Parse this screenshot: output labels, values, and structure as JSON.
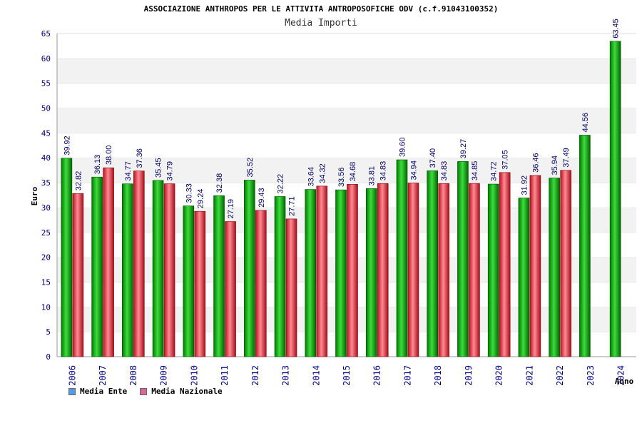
{
  "chart_data": {
    "type": "bar",
    "title": "ASSOCIAZIONE ANTHROPOS PER LE ATTIVITA ANTROPOSOFICHE ODV (c.f.91043100352)",
    "subtitle": "Media Importi",
    "xlabel": "Anno",
    "ylabel": "Euro",
    "ylim": [
      0,
      65
    ],
    "yticks": [
      0,
      5,
      10,
      15,
      20,
      25,
      30,
      35,
      40,
      45,
      50,
      55,
      60,
      65
    ],
    "grid": "horizontal bands",
    "legend_position": "bottom-left",
    "categories": [
      "2006",
      "2007",
      "2008",
      "2009",
      "2010",
      "2011",
      "2012",
      "2013",
      "2014",
      "2015",
      "2016",
      "2017",
      "2018",
      "2019",
      "2020",
      "2021",
      "2022",
      "2023",
      "2024"
    ],
    "series": [
      {
        "name": "Media Ente",
        "color": "#00aa00",
        "legend_color": "#5599ee",
        "values": [
          39.92,
          36.13,
          34.77,
          35.45,
          30.33,
          32.38,
          35.52,
          32.22,
          33.64,
          33.56,
          33.81,
          39.6,
          37.4,
          39.27,
          34.72,
          31.92,
          35.94,
          44.56,
          63.45
        ],
        "labels": [
          "39.92",
          "36.13",
          "34.77",
          "35.45",
          "30.33",
          "32.38",
          "35.52",
          "32.22",
          "33.64",
          "33.56",
          "33.81",
          "39.60",
          "37.40",
          "39.27",
          "34.72",
          "31.92",
          "35.94",
          "44.56",
          "63.45"
        ]
      },
      {
        "name": "Media Nazionale",
        "color": "#dd2233",
        "legend_color": "#dd6699",
        "values": [
          32.82,
          38.0,
          37.36,
          34.79,
          29.24,
          27.19,
          29.43,
          27.71,
          34.32,
          34.68,
          34.83,
          34.94,
          34.83,
          34.85,
          37.05,
          36.46,
          37.49,
          null,
          null
        ],
        "labels": [
          "32.82",
          "38.00",
          "37.36",
          "34.79",
          "29.24",
          "27.19",
          "29.43",
          "27.71",
          "34.32",
          "34.68",
          "34.83",
          "34.94",
          "34.83",
          "34.85",
          "37.05",
          "36.46",
          "37.49",
          null,
          null
        ]
      }
    ]
  }
}
